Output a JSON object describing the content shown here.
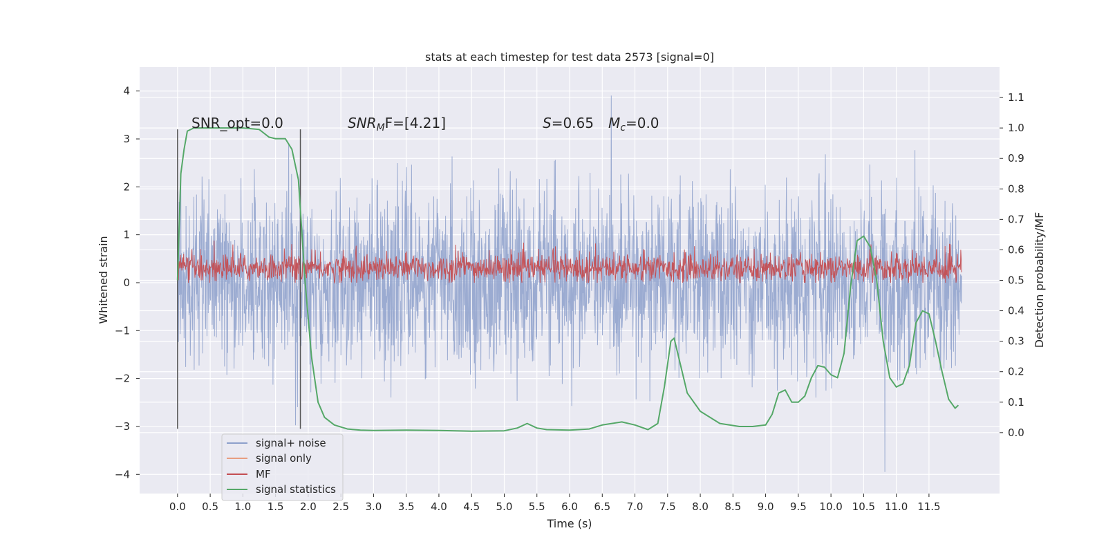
{
  "chart_data": {
    "type": "line",
    "title": "stats at each timestep for test data 2573 [signal=0]",
    "xlabel": "Time (s)",
    "ylabel_left": "Whitened strain",
    "ylabel_right": "Detection probability/MF",
    "xlim": [
      -0.58,
      12.58
    ],
    "ylim_left": [
      -4.4,
      4.5
    ],
    "ylim_right": [
      -0.2,
      1.2
    ],
    "x_ticks": [
      "0.0",
      "0.5",
      "1.0",
      "1.5",
      "2.0",
      "2.5",
      "3.0",
      "3.5",
      "4.0",
      "4.5",
      "5.0",
      "5.5",
      "6.0",
      "6.5",
      "7.0",
      "7.5",
      "8.0",
      "8.5",
      "9.0",
      "9.5",
      "10.0",
      "10.5",
      "11.0",
      "11.5"
    ],
    "y_ticks_left": [
      "4",
      "3",
      "2",
      "1",
      "0",
      "−1",
      "−2",
      "−3",
      "−4"
    ],
    "y_ticks_right": [
      "1.1",
      "1.0",
      "0.9",
      "0.8",
      "0.7",
      "0.6",
      "0.5",
      "0.4",
      "0.3",
      "0.2",
      "0.1",
      "0.0"
    ],
    "grid": true,
    "legend_position": "lower-left",
    "annotations": {
      "snr_opt": "SNR_opt=0.0",
      "snr_mf_main": "SNR",
      "snr_mf_sub": "M",
      "snr_mf_rest": "F=[4.21]",
      "s_main": "S",
      "s_rest": "=0.65",
      "mc_main": "M",
      "mc_sub": "c",
      "mc_rest": "=0.0"
    },
    "vertical_markers_s": [
      0.0,
      1.88
    ],
    "series": [
      {
        "name": "signal+ noise",
        "color": "#8da0cb",
        "axis": "left",
        "x_range": [
          0.0,
          12.0
        ],
        "band_typical": [
          -1.9,
          2.0
        ],
        "extremes": [
          -3.95,
          4.1
        ]
      },
      {
        "name": "signal only",
        "color": "#e89e80",
        "axis": "left",
        "values": []
      },
      {
        "name": "MF",
        "color": "#c44e52",
        "axis": "left",
        "x_range": [
          0.0,
          12.0
        ],
        "band_typical": [
          0.0,
          0.75
        ]
      },
      {
        "name": "signal statistics",
        "color": "#55a868",
        "axis": "right",
        "x": [
          0.0,
          0.05,
          0.1,
          0.15,
          0.25,
          0.5,
          1.0,
          1.25,
          1.4,
          1.5,
          1.65,
          1.75,
          1.85,
          1.95,
          2.05,
          2.15,
          2.25,
          2.4,
          2.6,
          2.8,
          3.0,
          3.5,
          4.0,
          4.5,
          5.0,
          5.2,
          5.35,
          5.5,
          5.65,
          6.0,
          6.3,
          6.5,
          6.8,
          7.0,
          7.2,
          7.35,
          7.45,
          7.55,
          7.6,
          7.7,
          7.8,
          8.0,
          8.3,
          8.6,
          8.8,
          9.0,
          9.1,
          9.2,
          9.3,
          9.4,
          9.5,
          9.6,
          9.7,
          9.8,
          9.9,
          10.0,
          10.1,
          10.2,
          10.3,
          10.4,
          10.5,
          10.6,
          10.7,
          10.8,
          10.9,
          11.0,
          11.1,
          11.2,
          11.3,
          11.4,
          11.5,
          11.6,
          11.7,
          11.8,
          11.9,
          11.95
        ],
        "values": [
          0.5,
          0.85,
          0.93,
          0.99,
          1.0,
          1.0,
          1.0,
          0.995,
          0.97,
          0.965,
          0.965,
          0.93,
          0.83,
          0.5,
          0.25,
          0.1,
          0.05,
          0.025,
          0.012,
          0.008,
          0.007,
          0.008,
          0.007,
          0.005,
          0.006,
          0.015,
          0.03,
          0.015,
          0.01,
          0.008,
          0.012,
          0.025,
          0.035,
          0.025,
          0.01,
          0.03,
          0.15,
          0.3,
          0.31,
          0.22,
          0.13,
          0.07,
          0.03,
          0.02,
          0.02,
          0.025,
          0.06,
          0.13,
          0.14,
          0.1,
          0.1,
          0.12,
          0.18,
          0.22,
          0.215,
          0.19,
          0.18,
          0.26,
          0.48,
          0.63,
          0.645,
          0.61,
          0.5,
          0.3,
          0.18,
          0.15,
          0.16,
          0.22,
          0.36,
          0.4,
          0.39,
          0.3,
          0.2,
          0.11,
          0.08,
          0.09
        ]
      }
    ]
  }
}
